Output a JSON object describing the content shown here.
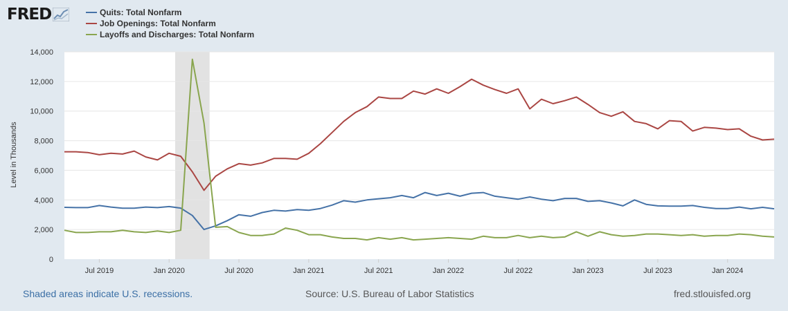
{
  "logo": {
    "text": "FRED"
  },
  "footer": {
    "recession_note": "Shaded areas indicate U.S. recessions.",
    "source": "Source: U.S. Bureau of Labor Statistics",
    "site": "fred.stlouisfed.org"
  },
  "chart_data": {
    "type": "line",
    "ylabel": "Level in Thousands",
    "ylim": [
      0,
      14000
    ],
    "yticks": [
      0,
      2000,
      4000,
      6000,
      8000,
      10000,
      12000,
      14000
    ],
    "ytick_labels": [
      "0",
      "2,000",
      "4,000",
      "6,000",
      "8,000",
      "10,000",
      "12,000",
      "14,000"
    ],
    "xtick_labels": [
      "Jul 2019",
      "Jan 2020",
      "Jul 2020",
      "Jan 2021",
      "Jul 2021",
      "Jan 2022",
      "Jul 2022",
      "Jan 2023",
      "Jul 2023",
      "Jan 2024"
    ],
    "xtick_dates": [
      "2019-07",
      "2020-01",
      "2020-07",
      "2021-01",
      "2021-07",
      "2022-01",
      "2022-07",
      "2023-01",
      "2023-07",
      "2024-01"
    ],
    "x_start": "2019-04",
    "x_end": "2024-05",
    "grid": true,
    "legend_placement": "top-left",
    "recession": {
      "start": "2020-02",
      "end": "2020-04"
    },
    "x": [
      "2019-04",
      "2019-05",
      "2019-06",
      "2019-07",
      "2019-08",
      "2019-09",
      "2019-10",
      "2019-11",
      "2019-12",
      "2020-01",
      "2020-02",
      "2020-03",
      "2020-04",
      "2020-05",
      "2020-06",
      "2020-07",
      "2020-08",
      "2020-09",
      "2020-10",
      "2020-11",
      "2020-12",
      "2021-01",
      "2021-02",
      "2021-03",
      "2021-04",
      "2021-05",
      "2021-06",
      "2021-07",
      "2021-08",
      "2021-09",
      "2021-10",
      "2021-11",
      "2021-12",
      "2022-01",
      "2022-02",
      "2022-03",
      "2022-04",
      "2022-05",
      "2022-06",
      "2022-07",
      "2022-08",
      "2022-09",
      "2022-10",
      "2022-11",
      "2022-12",
      "2023-01",
      "2023-02",
      "2023-03",
      "2023-04",
      "2023-05",
      "2023-06",
      "2023-07",
      "2023-08",
      "2023-09",
      "2023-10",
      "2023-11",
      "2023-12",
      "2024-01",
      "2024-02",
      "2024-03",
      "2024-04",
      "2024-05"
    ],
    "series": [
      {
        "name": "Quits: Total Nonfarm",
        "color": "#4572a7",
        "values": [
          3500,
          3480,
          3480,
          3620,
          3520,
          3440,
          3440,
          3520,
          3480,
          3550,
          3450,
          2950,
          2000,
          2250,
          2600,
          3000,
          2900,
          3150,
          3300,
          3250,
          3350,
          3300,
          3420,
          3650,
          3950,
          3850,
          4000,
          4080,
          4150,
          4300,
          4150,
          4500,
          4300,
          4450,
          4250,
          4450,
          4500,
          4250,
          4150,
          4050,
          4200,
          4050,
          3950,
          4100,
          4100,
          3900,
          3950,
          3800,
          3600,
          4000,
          3700,
          3600,
          3580,
          3580,
          3620,
          3500,
          3420,
          3420,
          3520,
          3400,
          3500,
          3400
        ]
      },
      {
        "name": "Job Openings: Total Nonfarm",
        "color": "#aa4643",
        "values": [
          7250,
          7250,
          7200,
          7050,
          7150,
          7100,
          7300,
          6900,
          6700,
          7150,
          6950,
          5900,
          4650,
          5600,
          6100,
          6450,
          6350,
          6500,
          6800,
          6800,
          6750,
          7150,
          7800,
          8550,
          9300,
          9900,
          10300,
          10950,
          10850,
          10850,
          11350,
          11150,
          11500,
          11200,
          11650,
          12150,
          11750,
          11450,
          11200,
          11500,
          10150,
          10800,
          10500,
          10700,
          10950,
          10450,
          9900,
          9650,
          9950,
          9300,
          9150,
          8800,
          9350,
          9300,
          8650,
          8900,
          8850,
          8750,
          8800,
          8300,
          8050,
          8100
        ]
      },
      {
        "name": "Layoffs and Discharges: Total Nonfarm",
        "color": "#89a54e",
        "values": [
          1950,
          1800,
          1800,
          1850,
          1850,
          1950,
          1850,
          1800,
          1900,
          1800,
          1950,
          13500,
          9200,
          2150,
          2200,
          1800,
          1600,
          1600,
          1700,
          2100,
          1950,
          1650,
          1650,
          1500,
          1400,
          1400,
          1300,
          1450,
          1350,
          1450,
          1300,
          1350,
          1400,
          1450,
          1400,
          1350,
          1550,
          1450,
          1450,
          1600,
          1450,
          1550,
          1450,
          1500,
          1850,
          1550,
          1850,
          1650,
          1550,
          1600,
          1700,
          1700,
          1650,
          1600,
          1650,
          1550,
          1600,
          1600,
          1700,
          1650,
          1550,
          1500
        ]
      }
    ]
  }
}
